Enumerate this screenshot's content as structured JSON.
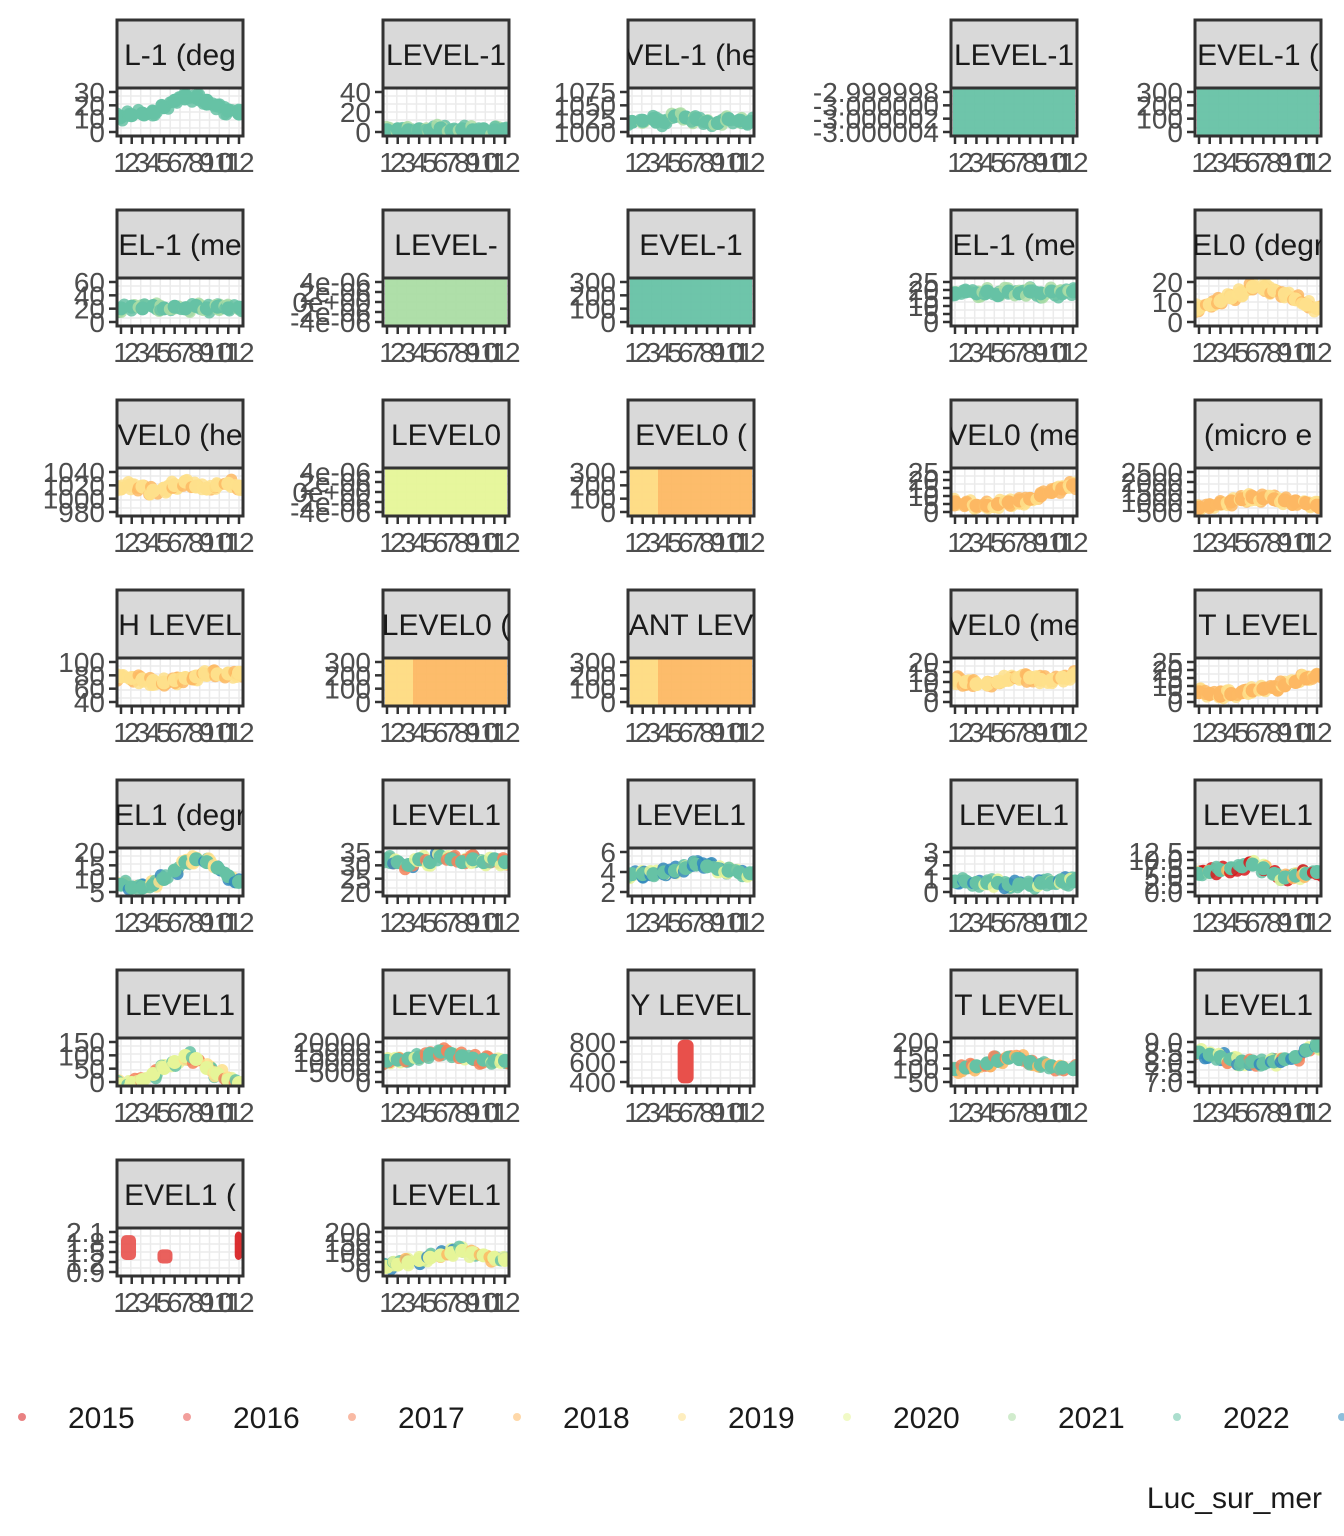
{
  "chart_data": {
    "type": "scatter",
    "caption": "Luc_sur_mer",
    "legend": {
      "placement": "bottom",
      "entries": [
        {
          "label": "2015",
          "color": "#d7191c"
        },
        {
          "label": "2016",
          "color": "#e8504b"
        },
        {
          "label": "2017",
          "color": "#f4825a"
        },
        {
          "label": "2018",
          "color": "#fdb863"
        },
        {
          "label": "2019",
          "color": "#fee08b"
        },
        {
          "label": "2020",
          "color": "#e6f598"
        },
        {
          "label": "2021",
          "color": "#abdda4"
        },
        {
          "label": "2022",
          "color": "#66c2a5"
        },
        {
          "label": "",
          "color": "#3288bd"
        }
      ]
    },
    "x_ticks": [
      "1",
      "2",
      "3",
      "4",
      "5",
      "6",
      "7",
      "8",
      "9",
      "10",
      "11",
      "12"
    ],
    "panels": [
      {
        "strip": "L-1 (deg",
        "yticks": [
          "30",
          "20",
          "10",
          "0"
        ],
        "ylim": [
          0,
          30
        ],
        "colors": [
          "#66c2a5"
        ],
        "profile": [
          12,
          13,
          14,
          15,
          18,
          22,
          25,
          24,
          22,
          19,
          16,
          14
        ]
      },
      {
        "strip": "LEVEL-1",
        "yticks": [
          "40",
          "20",
          "0"
        ],
        "ylim": [
          0,
          50
        ],
        "colors": [
          "#66c2a5",
          "#abdda4"
        ],
        "profile": [
          6,
          7,
          6,
          7,
          6,
          8,
          6,
          7,
          6,
          7,
          6,
          7
        ]
      },
      {
        "strip": "VEL-1 (he",
        "yticks": [
          "1075",
          "1050",
          "1025",
          "1000"
        ],
        "ylim": [
          995,
          1080
        ],
        "colors": [
          "#66c2a5",
          "#abdda4"
        ],
        "profile": [
          1020,
          1022,
          1025,
          1020,
          1030,
          1028,
          1025,
          1020,
          1018,
          1025,
          1022,
          1020
        ]
      },
      {
        "strip": "LEVEL-1",
        "yticks": [
          "-2.999998",
          "-3.000000",
          "-3.000002",
          "-3.000004"
        ],
        "ylim": [
          -3.000004,
          -2.999997
        ],
        "colors": [
          "#66c2a5"
        ],
        "profile": [],
        "fill": true
      },
      {
        "strip": "EVEL-1 (",
        "yticks": [
          "300",
          "200",
          "100",
          "0"
        ],
        "ylim": [
          0,
          330
        ],
        "colors": [
          "#66c2a5"
        ],
        "profile": [],
        "fill": true
      },
      {
        "strip": "EL-1 (me",
        "yticks": [
          "60",
          "40",
          "20",
          "0"
        ],
        "ylim": [
          0,
          60
        ],
        "colors": [
          "#66c2a5",
          "#abdda4"
        ],
        "profile": [
          22,
          24,
          22,
          25,
          22,
          24,
          22,
          25,
          22,
          24,
          22,
          23
        ]
      },
      {
        "strip": "LEVEL-",
        "yticks": [
          "4e-06",
          "2e-06",
          "0e+00",
          "-2e-06",
          "-4e-06"
        ],
        "ylim": [
          -4.5e-06,
          5e-06
        ],
        "colors": [
          "#abdda4"
        ],
        "profile": [],
        "fill": true
      },
      {
        "strip": "EVEL-1",
        "yticks": [
          "300",
          "200",
          "100",
          "0"
        ],
        "ylim": [
          0,
          330
        ],
        "colors": [
          "#66c2a5"
        ],
        "profile": [],
        "fill": true
      },
      {
        "strip": "EL-1 (me",
        "yticks": [
          "25",
          "20",
          "15",
          "10",
          "5",
          "0"
        ],
        "ylim": [
          0,
          25
        ],
        "colors": [
          "#66c2a5",
          "#abdda4"
        ],
        "profile": [
          17,
          18,
          17,
          18,
          16,
          18,
          17,
          18,
          17,
          18,
          17,
          18
        ]
      },
      {
        "strip": "EL0 (degr",
        "yticks": [
          "20",
          "10",
          "0"
        ],
        "ylim": [
          0,
          27
        ],
        "colors": [
          "#fee08b",
          "#fdb863"
        ],
        "profile": [
          10,
          12,
          14,
          16,
          19,
          22,
          21,
          20,
          18,
          15,
          12,
          10
        ]
      },
      {
        "strip": "VEL0 (he",
        "yticks": [
          "1040",
          "1020",
          "1000",
          "980"
        ],
        "ylim": [
          975,
          1045
        ],
        "colors": [
          "#fee08b",
          "#fdb863"
        ],
        "profile": [
          1015,
          1020,
          1018,
          1012,
          1015,
          1020,
          1025,
          1018,
          1015,
          1020,
          1022,
          1018
        ]
      },
      {
        "strip": "LEVEL0",
        "yticks": [
          "4e-06",
          "2e-06",
          "0e+00",
          "-2e-06",
          "-4e-06"
        ],
        "ylim": [
          -4.5e-06,
          5e-06
        ],
        "colors": [
          "#e6f598"
        ],
        "profile": [],
        "fill": true
      },
      {
        "strip": "EVEL0 (",
        "yticks": [
          "300",
          "200",
          "100",
          "0"
        ],
        "ylim": [
          0,
          330
        ],
        "colors": [
          "#fdb863",
          "#fee08b"
        ],
        "profile": [],
        "fill": true
      },
      {
        "strip": "VEL0 (me",
        "yticks": [
          "25",
          "20",
          "15",
          "10",
          "5",
          "0"
        ],
        "ylim": [
          0,
          28
        ],
        "colors": [
          "#fdb863",
          "#fee08b"
        ],
        "profile": [
          8,
          7,
          6,
          6,
          7,
          8,
          9,
          10,
          12,
          14,
          16,
          18
        ]
      },
      {
        "strip": "(micro e",
        "yticks": [
          "2500",
          "2000",
          "1500",
          "1000",
          "500"
        ],
        "ylim": [
          400,
          2700
        ],
        "colors": [
          "#fdb863",
          "#fee08b"
        ],
        "profile": [
          800,
          900,
          1000,
          1100,
          1200,
          1300,
          1250,
          1200,
          1150,
          1100,
          1000,
          900
        ]
      },
      {
        "strip": "H LEVEL",
        "yticks": [
          "100",
          "80",
          "60",
          "40"
        ],
        "ylim": [
          40,
          105
        ],
        "colors": [
          "#fee08b",
          "#fdb863"
        ],
        "profile": [
          80,
          78,
          76,
          74,
          72,
          75,
          78,
          80,
          82,
          83,
          84,
          85
        ]
      },
      {
        "strip": "LEVEL0 (",
        "yticks": [
          "300",
          "200",
          "100",
          "0"
        ],
        "ylim": [
          0,
          330
        ],
        "colors": [
          "#fdb863",
          "#fee08b"
        ],
        "profile": [],
        "fill": true
      },
      {
        "strip": "ANT LEV",
        "yticks": [
          "300",
          "200",
          "100",
          "0"
        ],
        "ylim": [
          0,
          330
        ],
        "colors": [
          "#fdb863",
          "#fee08b"
        ],
        "profile": [],
        "fill": true
      },
      {
        "strip": "VEL0 (me",
        "yticks": [
          "20",
          "15",
          "10",
          "5",
          "0"
        ],
        "ylim": [
          0,
          22
        ],
        "colors": [
          "#fee08b",
          "#fdb863"
        ],
        "profile": [
          12,
          11,
          10,
          10,
          11,
          12,
          13,
          13,
          12,
          12,
          13,
          14
        ]
      },
      {
        "strip": "T LEVEL",
        "yticks": [
          "25",
          "20",
          "15",
          "10",
          "5",
          "0"
        ],
        "ylim": [
          0,
          28
        ],
        "colors": [
          "#fdb863",
          "#fee08b"
        ],
        "profile": [
          8,
          7,
          6,
          7,
          8,
          9,
          10,
          11,
          12,
          14,
          16,
          18
        ]
      },
      {
        "strip": "EL1 (degr",
        "yticks": [
          "20",
          "15",
          "10",
          "5"
        ],
        "ylim": [
          5,
          22
        ],
        "colors": [
          "#66c2a5",
          "#fee08b",
          "#3288bd"
        ],
        "profile": [
          9,
          8,
          8,
          9,
          11,
          14,
          17,
          18,
          17,
          15,
          12,
          10
        ]
      },
      {
        "strip": "LEVEL1",
        "yticks": [
          "35",
          "30",
          "25",
          "20"
        ],
        "ylim": [
          20,
          37
        ],
        "colors": [
          "#66c2a5",
          "#f4825a",
          "#e6f598",
          "#3288bd"
        ],
        "profile": [
          33,
          32,
          31,
          33,
          32,
          34,
          33,
          32,
          33,
          32,
          33,
          32
        ]
      },
      {
        "strip": "LEVEL1",
        "yticks": [
          "6",
          "4",
          "2"
        ],
        "ylim": [
          1,
          6.5
        ],
        "colors": [
          "#66c2a5",
          "#e6f598",
          "#3288bd"
        ],
        "profile": [
          3.5,
          3.5,
          3.5,
          3.7,
          3.9,
          4.2,
          4.6,
          4.4,
          4.1,
          3.9,
          3.7,
          3.6
        ]
      },
      {
        "strip": "LEVEL1",
        "yticks": [
          "3",
          "2",
          "1",
          "0"
        ],
        "ylim": [
          0,
          3.3
        ],
        "colors": [
          "#66c2a5",
          "#e6f598",
          "#3288bd"
        ],
        "profile": [
          1.0,
          1.0,
          0.9,
          0.9,
          0.9,
          0.8,
          0.8,
          0.8,
          0.9,
          0.9,
          1.0,
          1.0
        ]
      },
      {
        "strip": "LEVEL1",
        "yticks": [
          "12.5",
          "10.0",
          "7.5",
          "5.0",
          "2.5",
          "0.0"
        ],
        "ylim": [
          0,
          13
        ],
        "colors": [
          "#66c2a5",
          "#fdb863",
          "#e6f598",
          "#d7191c"
        ],
        "profile": [
          6,
          6.5,
          7,
          7.5,
          8,
          8.5,
          7.5,
          6,
          5,
          5.5,
          6,
          6.5
        ]
      },
      {
        "strip": "LEVEL1",
        "yticks": [
          "150",
          "100",
          "50",
          "0"
        ],
        "ylim": [
          0,
          160
        ],
        "colors": [
          "#e6f598",
          "#fee08b",
          "#f4825a",
          "#66c2a5"
        ],
        "profile": [
          5,
          10,
          20,
          40,
          60,
          80,
          100,
          90,
          60,
          40,
          20,
          10
        ]
      },
      {
        "strip": "LEVEL1",
        "yticks": [
          "20000",
          "15000",
          "10000",
          "5000",
          "0"
        ],
        "ylim": [
          0,
          21000
        ],
        "colors": [
          "#66c2a5",
          "#e6f598",
          "#f4825a"
        ],
        "profile": [
          11000,
          11500,
          12000,
          12500,
          14000,
          15000,
          14000,
          13000,
          12000,
          11500,
          11000,
          11000
        ]
      },
      {
        "strip": "Y LEVEL",
        "yticks": [
          "800",
          "600",
          "400"
        ],
        "ylim": [
          350,
          900
        ],
        "colors": [
          "#e8504b"
        ],
        "profile": [],
        "spike": {
          "x": 6,
          "low": 380,
          "high": 880
        }
      },
      {
        "strip": "T LEVEL",
        "yticks": [
          "200",
          "150",
          "100",
          "50"
        ],
        "ylim": [
          40,
          210
        ],
        "colors": [
          "#66c2a5",
          "#f4825a",
          "#fdb863"
        ],
        "profile": [
          100,
          105,
          110,
          120,
          130,
          140,
          135,
          125,
          115,
          110,
          105,
          100
        ]
      },
      {
        "strip": "LEVEL1",
        "yticks": [
          "9.0",
          "8.5",
          "8.0",
          "7.5",
          "7.0"
        ],
        "ylim": [
          7,
          9.15
        ],
        "colors": [
          "#66c2a5",
          "#e6f598",
          "#3288bd",
          "#f4825a"
        ],
        "profile": [
          8.5,
          8.4,
          8.3,
          8.2,
          8.1,
          8.1,
          8.0,
          8.1,
          8.2,
          8.3,
          8.6,
          8.8
        ]
      },
      {
        "strip": "EVEL1 (",
        "yticks": [
          "2.1",
          "1.8",
          "1.5",
          "1.2",
          "0.9"
        ],
        "ylim": [
          0.85,
          2.2
        ],
        "colors": [
          "#e8504b",
          "#d7191c"
        ],
        "profile": [],
        "blocks": [
          [
            1,
            2.4,
            1.3,
            2.0
          ],
          [
            4.4,
            5.8,
            1.2,
            1.6
          ],
          [
            11.6,
            12.3,
            1.3,
            2.1
          ]
        ]
      },
      {
        "strip": "LEVEL1",
        "yticks": [
          "200",
          "150",
          "100",
          "50",
          "0"
        ],
        "ylim": [
          0,
          210
        ],
        "colors": [
          "#e6f598",
          "#fdb863",
          "#66c2a5",
          "#3288bd"
        ],
        "profile": [
          40,
          50,
          60,
          70,
          80,
          90,
          100,
          110,
          100,
          90,
          80,
          70
        ]
      }
    ]
  }
}
